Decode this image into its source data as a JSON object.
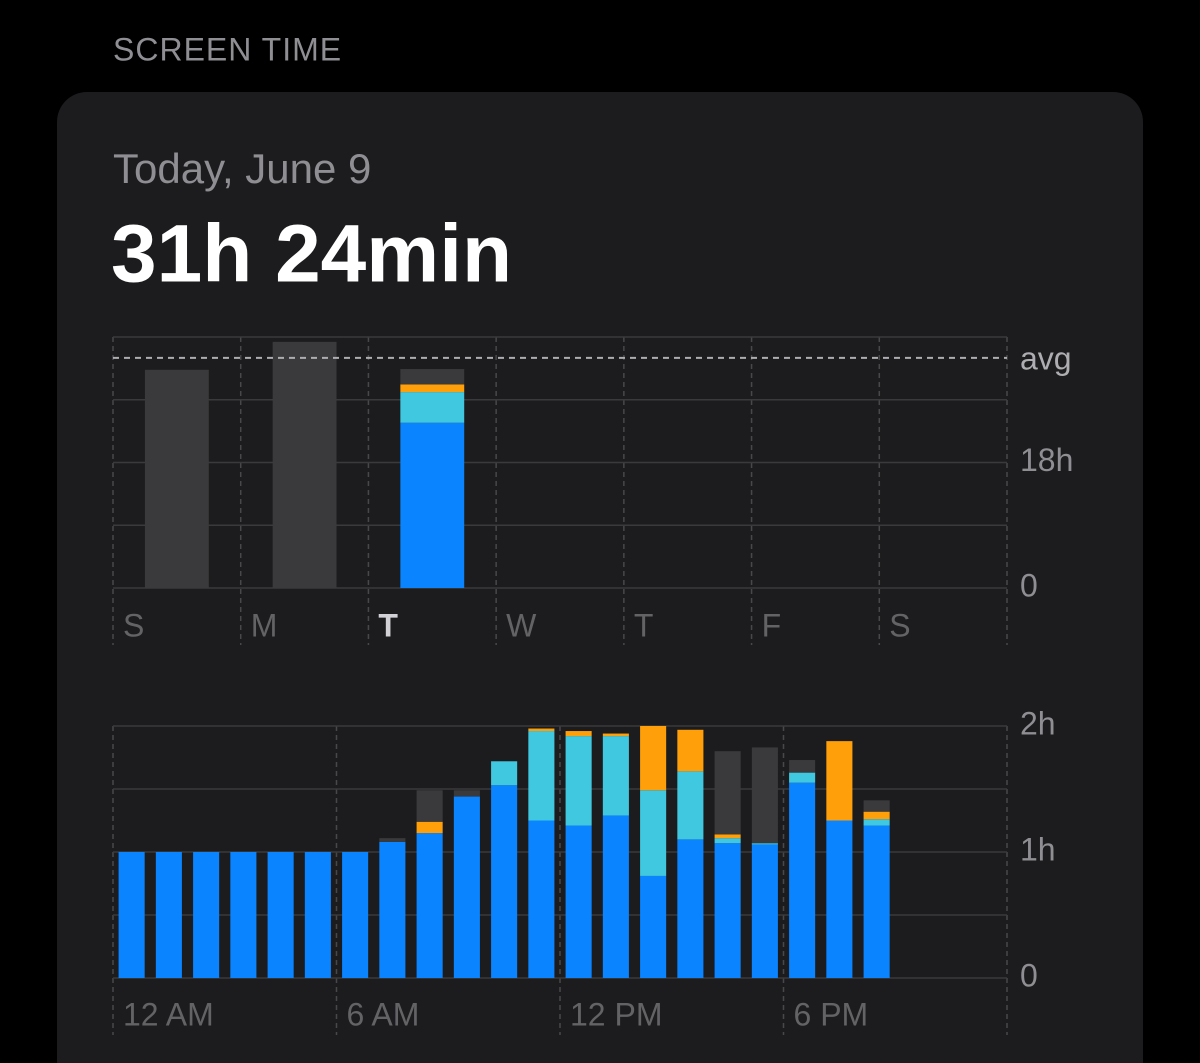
{
  "header": {
    "section_title": "SCREEN TIME"
  },
  "card": {
    "date": "Today, June 9",
    "total": "31h 24min"
  },
  "chart_data": [
    {
      "type": "stacked-bar",
      "categories": [
        "S",
        "M",
        "T",
        "W",
        "T",
        "F",
        "S"
      ],
      "highlight_category": 2,
      "series": [
        {
          "color": "#0a84ff",
          "values": [
            null,
            null,
            23.7,
            null,
            null,
            null,
            null
          ]
        },
        {
          "color": "#40c8e0",
          "values": [
            null,
            null,
            4.4,
            null,
            null,
            null,
            null
          ]
        },
        {
          "color": "#ff9f0a",
          "values": [
            null,
            null,
            1.1,
            null,
            null,
            null,
            null
          ]
        },
        {
          "color": "#3a3a3c",
          "values": [
            31.3,
            35.3,
            2.2,
            null,
            null,
            null,
            null
          ]
        }
      ],
      "ylim": [
        0,
        36
      ],
      "yticks": [
        0,
        {
          "value": 18,
          "label": "18h"
        }
      ],
      "minor_yticks": [
        9,
        27,
        36
      ],
      "avg": {
        "value": 33,
        "label": "avg"
      },
      "grid": true
    },
    {
      "type": "stacked-bar",
      "categories": [
        "12 AM",
        null,
        null,
        null,
        null,
        null,
        "6 AM",
        null,
        null,
        null,
        null,
        null,
        "12 PM",
        null,
        null,
        null,
        null,
        null,
        "6 PM",
        null,
        null,
        null,
        null,
        null
      ],
      "series": [
        {
          "color": "#0a84ff",
          "values": [
            1.0,
            1.0,
            1.0,
            1.0,
            1.0,
            1.0,
            1.0,
            1.08,
            1.15,
            1.44,
            1.53,
            1.25,
            1.21,
            1.29,
            0.81,
            1.1,
            1.07,
            1.06,
            1.55,
            1.25,
            1.21,
            null,
            null,
            null
          ]
        },
        {
          "color": "#40c8e0",
          "values": [
            null,
            null,
            null,
            null,
            null,
            null,
            null,
            null,
            null,
            null,
            0.19,
            0.71,
            0.71,
            0.63,
            0.68,
            0.54,
            0.04,
            0.01,
            0.08,
            null,
            0.05,
            null,
            null,
            null
          ]
        },
        {
          "color": "#ff9f0a",
          "values": [
            null,
            null,
            null,
            null,
            null,
            null,
            null,
            null,
            0.09,
            null,
            null,
            0.02,
            0.04,
            0.02,
            0.51,
            0.33,
            0.03,
            null,
            null,
            0.63,
            0.06,
            null,
            null,
            null
          ]
        },
        {
          "color": "#3a3a3c",
          "values": [
            null,
            null,
            null,
            null,
            null,
            null,
            null,
            0.03,
            0.25,
            0.05,
            null,
            null,
            null,
            null,
            null,
            null,
            0.66,
            0.76,
            0.1,
            null,
            0.09,
            null,
            null,
            null
          ]
        }
      ],
      "ylim": [
        0,
        2
      ],
      "yticks": [
        0,
        {
          "value": 1,
          "label": "1h"
        },
        {
          "value": 2,
          "label": "2h"
        }
      ],
      "minor_yticks": [
        0.5,
        1.5
      ],
      "grid": true
    }
  ]
}
